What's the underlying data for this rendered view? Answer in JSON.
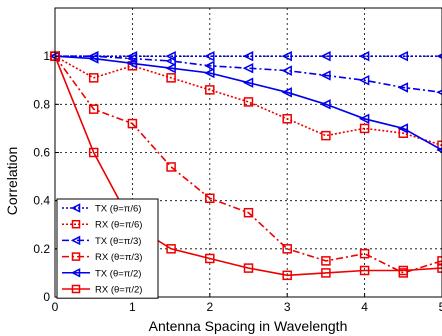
{
  "chart_data": {
    "type": "line",
    "title": "",
    "xlabel": "Antenna Spacing in Wavelength",
    "ylabel": "Correlation",
    "xlim": [
      0,
      5
    ],
    "ylim": [
      0,
      1.2
    ],
    "x_ticks": [
      "0",
      "1",
      "2",
      "3",
      "4",
      "5"
    ],
    "y_ticks": [
      "0",
      "0.2",
      "0.4",
      "0.6",
      "0.8",
      "1"
    ],
    "grid": true,
    "legend_position": "bottom-left",
    "series": [
      {
        "name": "TX (θ=π/6)",
        "color": "#0000ee",
        "line_style": "dotted",
        "marker": "left-triangle",
        "x": [
          0,
          0.5,
          1,
          1.5,
          2,
          2.5,
          3,
          3.5,
          4,
          4.5,
          5
        ],
        "y": [
          1.0,
          1.0,
          1.0,
          1.0,
          1.0,
          1.0,
          1.0,
          1.0,
          1.0,
          1.0,
          1.0
        ]
      },
      {
        "name": "RX (θ=π/6)",
        "color": "#ee0000",
        "line_style": "dotted",
        "marker": "square",
        "x": [
          0,
          0.5,
          1,
          1.5,
          2,
          2.5,
          3,
          3.5,
          4,
          4.5,
          5
        ],
        "y": [
          1.0,
          0.91,
          0.96,
          0.91,
          0.86,
          0.81,
          0.74,
          0.67,
          0.7,
          0.68,
          0.63
        ]
      },
      {
        "name": "TX (θ=π/3)",
        "color": "#0000ee",
        "line_style": "dashdot",
        "marker": "left-triangle",
        "x": [
          0,
          0.5,
          1,
          1.5,
          2,
          2.5,
          3,
          3.5,
          4,
          4.5,
          5
        ],
        "y": [
          1.0,
          1.0,
          0.99,
          0.98,
          0.96,
          0.95,
          0.94,
          0.92,
          0.9,
          0.87,
          0.85
        ]
      },
      {
        "name": "RX (θ=π/3)",
        "color": "#ee0000",
        "line_style": "dashdot",
        "marker": "square",
        "x": [
          0,
          0.5,
          1,
          1.5,
          2,
          2.5,
          3,
          3.5,
          4,
          4.5,
          5
        ],
        "y": [
          1.0,
          0.78,
          0.72,
          0.54,
          0.41,
          0.35,
          0.2,
          0.15,
          0.18,
          0.1,
          0.15
        ]
      },
      {
        "name": "TX (θ=π/2)",
        "color": "#0000ee",
        "line_style": "solid",
        "marker": "left-triangle",
        "x": [
          0,
          0.5,
          1,
          1.5,
          2,
          2.5,
          3,
          3.5,
          4,
          4.5,
          5
        ],
        "y": [
          1.0,
          0.99,
          0.97,
          0.95,
          0.93,
          0.89,
          0.85,
          0.8,
          0.74,
          0.7,
          0.61
        ]
      },
      {
        "name": "RX (θ=π/2)",
        "color": "#ee0000",
        "line_style": "solid",
        "marker": "square",
        "x": [
          0,
          0.5,
          1,
          1.5,
          2,
          2.5,
          3,
          3.5,
          4,
          4.5,
          5
        ],
        "y": [
          1.0,
          0.6,
          0.3,
          0.2,
          0.16,
          0.12,
          0.09,
          0.1,
          0.11,
          0.11,
          0.12
        ]
      }
    ]
  }
}
